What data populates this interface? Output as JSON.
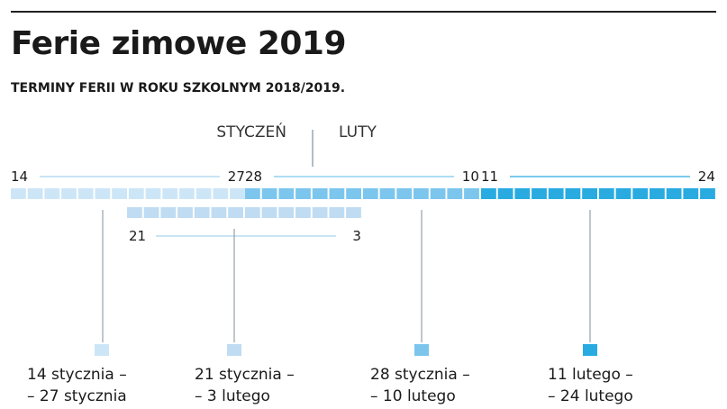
{
  "title": "Ferie zimowe 2019",
  "subtitle": "TERMINY FERII W ROKU SZKOLNYM 2018/2019.",
  "months": {
    "january": "STYCZEŃ",
    "february": "LUTY"
  },
  "colors": {
    "period_1": "#cde6f7",
    "period_3": "#7cc6ee",
    "period_4": "#29abe2",
    "period_2": "#bfdcf3",
    "text": "#1a1a1a",
    "line": "#7f8f99"
  },
  "chart_data": {
    "type": "timeline",
    "periods": [
      {
        "start": "14",
        "end": "27",
        "days": 14,
        "row": 1,
        "label_line1": "14 stycznia –",
        "label_line2": "– 27 stycznia"
      },
      {
        "start": "21",
        "end": "3",
        "days": 14,
        "row": 2,
        "label_line1": "21 stycznia –",
        "label_line2": "– 3 lutego"
      },
      {
        "start": "28",
        "end": "10",
        "days": 14,
        "row": 1,
        "label_line1": "28 stycznia –",
        "label_line2": "– 10 lutego"
      },
      {
        "start": "11",
        "end": "24",
        "days": 14,
        "row": 1,
        "label_line1": "11 lutego –",
        "label_line2": "– 24 lutego"
      }
    ]
  }
}
